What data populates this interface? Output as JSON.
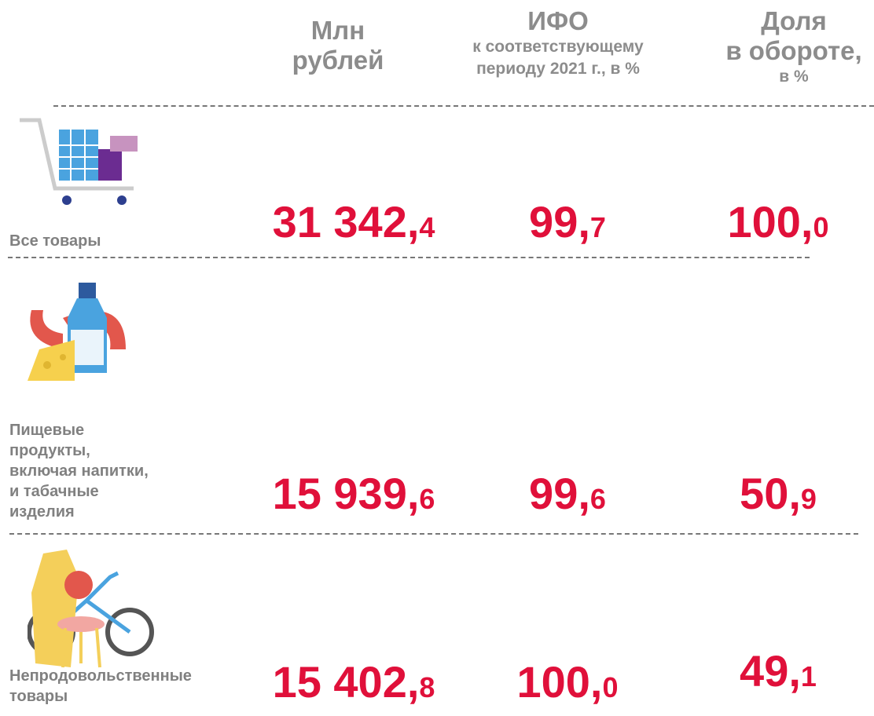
{
  "header": {
    "columns": [
      {
        "title": [
          "Млн",
          "рублей"
        ]
      },
      {
        "title": [
          "ИФО"
        ],
        "subtitle": [
          "к соответствующему",
          "периоду 2021 г., в %"
        ]
      },
      {
        "title": [
          "Доля",
          "в обороте,"
        ],
        "subtitle": [
          "в %"
        ]
      }
    ]
  },
  "rows": [
    {
      "label": [
        "Все товары"
      ],
      "values": [
        {
          "whole": "31 342,",
          "fraction": "4"
        },
        {
          "whole": "99,",
          "fraction": "7"
        },
        {
          "whole": "100,",
          "fraction": "0"
        }
      ]
    },
    {
      "label": [
        "Пищевые",
        "продукты,",
        "включая напитки,",
        "и табачные",
        "изделия"
      ],
      "values": [
        {
          "whole": "15 939,",
          "fraction": "6"
        },
        {
          "whole": "99,",
          "fraction": "6"
        },
        {
          "whole": "50,",
          "fraction": "9"
        }
      ]
    },
    {
      "label": [
        "Непродовольственные",
        "товары"
      ],
      "values": [
        {
          "whole": "15 402,",
          "fraction": "8"
        },
        {
          "whole": "100,",
          "fraction": "0"
        },
        {
          "whole": "49,",
          "fraction": "1"
        }
      ]
    }
  ]
}
